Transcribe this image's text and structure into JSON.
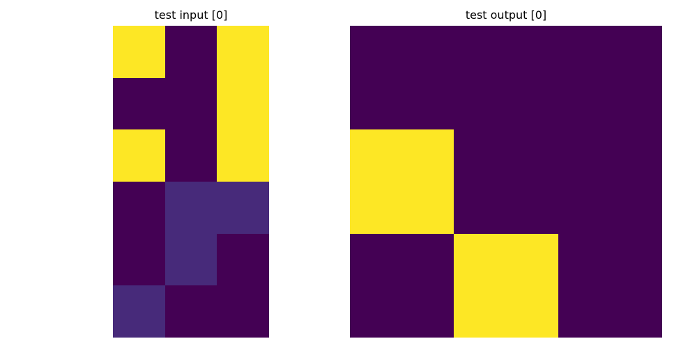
{
  "panels": {
    "input": {
      "title": "test input [0]",
      "grid": [
        [
          1,
          0,
          1
        ],
        [
          0,
          0,
          1
        ],
        [
          1,
          0,
          1
        ],
        [
          0,
          0.07,
          0.07
        ],
        [
          0,
          0.07,
          0
        ],
        [
          0.07,
          0,
          0
        ]
      ]
    },
    "output": {
      "title": "test output [0]",
      "grid": [
        [
          0,
          0,
          0
        ],
        [
          1,
          0,
          0
        ],
        [
          0,
          1,
          0
        ]
      ]
    }
  },
  "colors": {
    "low": "#440154",
    "midlow": "#472a7a",
    "high": "#fde725"
  }
}
